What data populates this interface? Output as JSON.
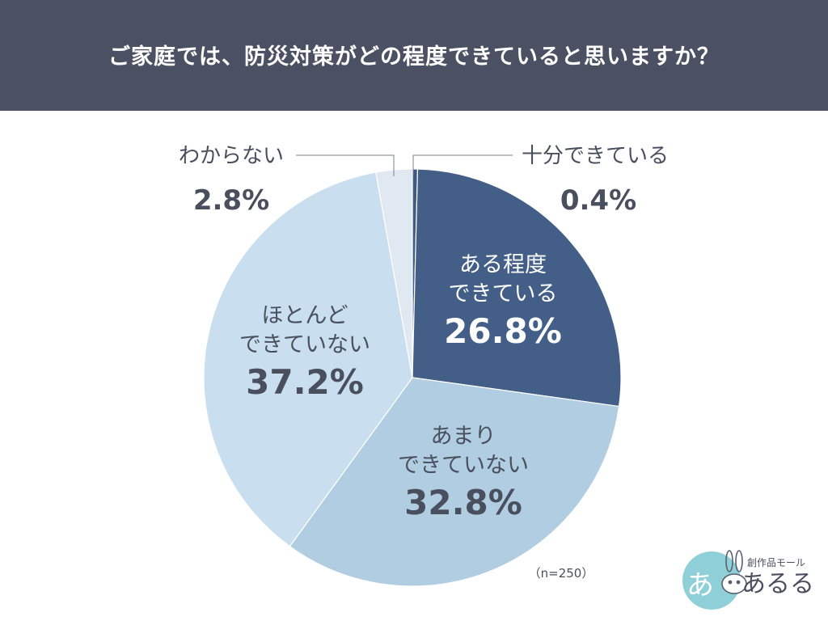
{
  "header": {
    "title": "ご家庭では、防災対策がどの程度できていると思いますか？"
  },
  "chart_data": {
    "type": "pie",
    "title": "ご家庭では、防災対策がどの程度できていると思いますか？",
    "slices": [
      {
        "label": "十分できている",
        "label_lines": [
          "十分できている"
        ],
        "value": 0.4,
        "display": "0.4%",
        "color": "#3f5a82"
      },
      {
        "label": "ある程度できている",
        "label_lines": [
          "ある程度",
          "できている"
        ],
        "value": 26.8,
        "display": "26.8%",
        "color": "#435f88"
      },
      {
        "label": "あまりできていない",
        "label_lines": [
          "あまり",
          "できていない"
        ],
        "value": 32.8,
        "display": "32.8%",
        "color": "#b0cde2"
      },
      {
        "label": "ほとんどできていない",
        "label_lines": [
          "ほとんど",
          "できていない"
        ],
        "value": 37.2,
        "display": "37.2%",
        "color": "#c9dff0"
      },
      {
        "label": "わからない",
        "label_lines": [
          "わからない"
        ],
        "value": 2.8,
        "display": "2.8%",
        "color": "#e0e8f1"
      }
    ],
    "legend": "none",
    "note": "（n=250）"
  },
  "colors": {
    "header_bg": "#4b5063",
    "text_dark": "#4a4f5e",
    "text_light": "#ffffff"
  },
  "logo": {
    "tagline": "創作品モール",
    "name": "あるる",
    "mark_char": "あ"
  }
}
